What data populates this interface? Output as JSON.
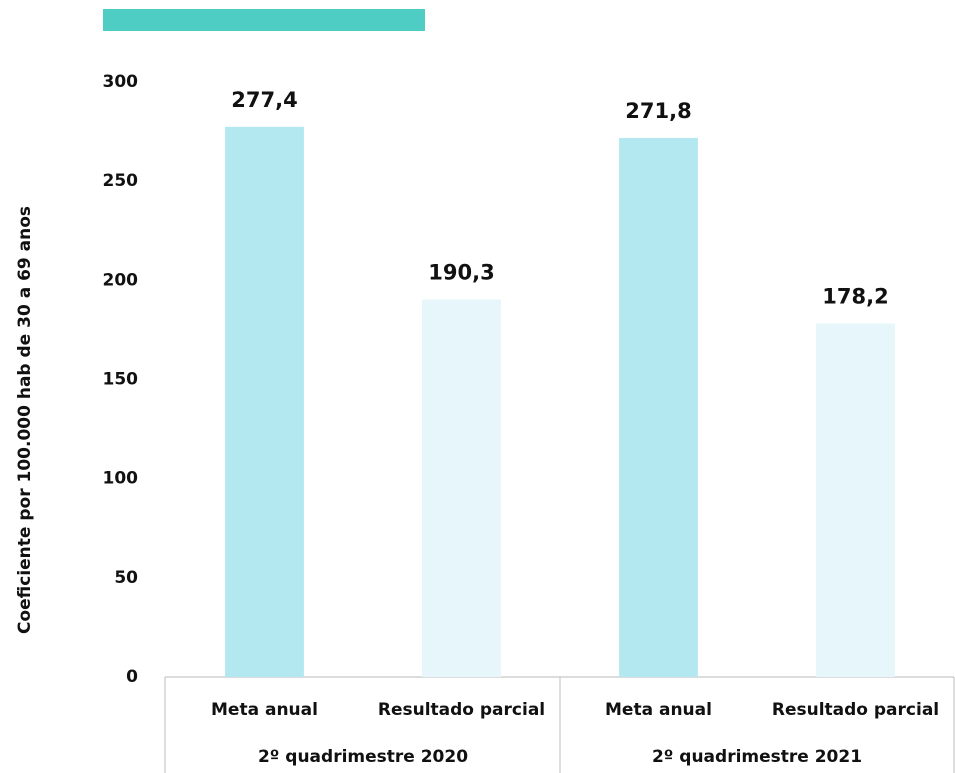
{
  "chart_data": {
    "type": "bar",
    "y_label": "Coeficiente por 100.000 hab de 30 a 69 anos",
    "categories": [
      "Meta anual",
      "Resultado parcial",
      "Meta anual",
      "Resultado parcial"
    ],
    "groups": [
      "2º quadrimestre 2020",
      "2º quadrimestre 2021"
    ],
    "values": [
      277.4,
      190.3,
      271.8,
      178.2
    ],
    "value_labels": [
      "277,4",
      "190,3",
      "271,8",
      "178,2"
    ],
    "colors": [
      "#b3e8f1",
      "#e6f6fa",
      "#b3e8f1",
      "#e6f6fa"
    ],
    "ylim": [
      0,
      300
    ],
    "yticks": [
      0,
      50,
      100,
      150,
      200,
      250,
      300
    ],
    "grid": false
  }
}
